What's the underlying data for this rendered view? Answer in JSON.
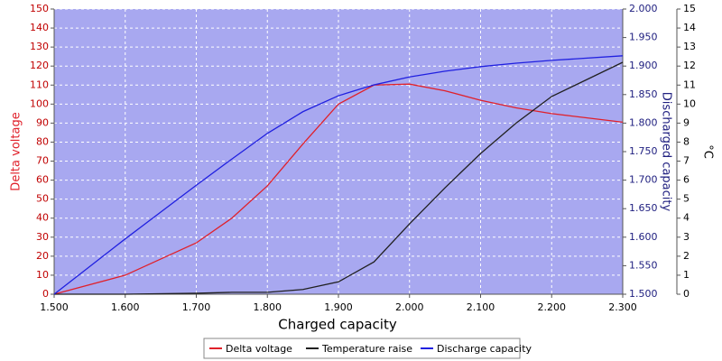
{
  "chart_data": {
    "type": "line",
    "x_label": "Charged capacity",
    "y_label": "Delta voltage",
    "y2_label": "Discharged capacity",
    "y3_label": "°C",
    "x": [
      1.5,
      1.6,
      1.7,
      1.75,
      1.8,
      1.85,
      1.9,
      1.95,
      2.0,
      2.05,
      2.1,
      2.15,
      2.2,
      2.3
    ],
    "xlim": [
      1.5,
      2.3
    ],
    "xticks": [
      {
        "value": 1.5,
        "label": "1.500"
      },
      {
        "value": 1.6,
        "label": "1.600"
      },
      {
        "value": 1.7,
        "label": "1.700"
      },
      {
        "value": 1.8,
        "label": "1.800"
      },
      {
        "value": 1.9,
        "label": "1.900"
      },
      {
        "value": 2.0,
        "label": "2.000"
      },
      {
        "value": 2.1,
        "label": "2.100"
      },
      {
        "value": 2.2,
        "label": "2.200"
      },
      {
        "value": 2.3,
        "label": "2.300"
      }
    ],
    "ylim": [
      0,
      150
    ],
    "yticks": [
      0,
      10,
      20,
      30,
      40,
      50,
      60,
      70,
      80,
      90,
      100,
      110,
      120,
      130,
      140,
      150
    ],
    "y2lim": [
      1.5,
      2.0
    ],
    "y2ticks": [
      {
        "value": 1.5,
        "label": "1.500"
      },
      {
        "value": 1.55,
        "label": "1.550"
      },
      {
        "value": 1.6,
        "label": "1.600"
      },
      {
        "value": 1.65,
        "label": "1.650"
      },
      {
        "value": 1.7,
        "label": "1.700"
      },
      {
        "value": 1.75,
        "label": "1.750"
      },
      {
        "value": 1.8,
        "label": "1.800"
      },
      {
        "value": 1.85,
        "label": "1.850"
      },
      {
        "value": 1.9,
        "label": "1.900"
      },
      {
        "value": 1.95,
        "label": "1.950"
      },
      {
        "value": 2.0,
        "label": "2.000"
      }
    ],
    "y3lim": [
      0,
      15
    ],
    "y3ticks": [
      0,
      1,
      2,
      3,
      4,
      5,
      6,
      7,
      8,
      9,
      10,
      11,
      12,
      13,
      14,
      15
    ],
    "grid": true,
    "legend": "bottom",
    "background": "#a8a8f0",
    "series": [
      {
        "name": "Delta voltage",
        "color": "#e0202a",
        "axis": "y",
        "values": [
          0,
          10,
          27,
          40,
          57,
          79,
          100,
          110,
          110.5,
          107,
          102,
          98,
          95,
          90.5
        ]
      },
      {
        "name": "Temperature raise",
        "color": "#202020",
        "axis": "y3",
        "values": [
          0,
          0,
          0.05,
          0.1,
          0.1,
          0.25,
          0.65,
          1.7,
          3.7,
          5.6,
          7.4,
          9,
          10.4,
          12.2
        ]
      },
      {
        "name": "Discharge capacity",
        "color": "#2020e0",
        "axis": "y2",
        "values": [
          1.5,
          1.597,
          1.691,
          1.737,
          1.782,
          1.82,
          1.848,
          1.867,
          1.881,
          1.891,
          1.899,
          1.905,
          1.91,
          1.918
        ]
      }
    ]
  }
}
